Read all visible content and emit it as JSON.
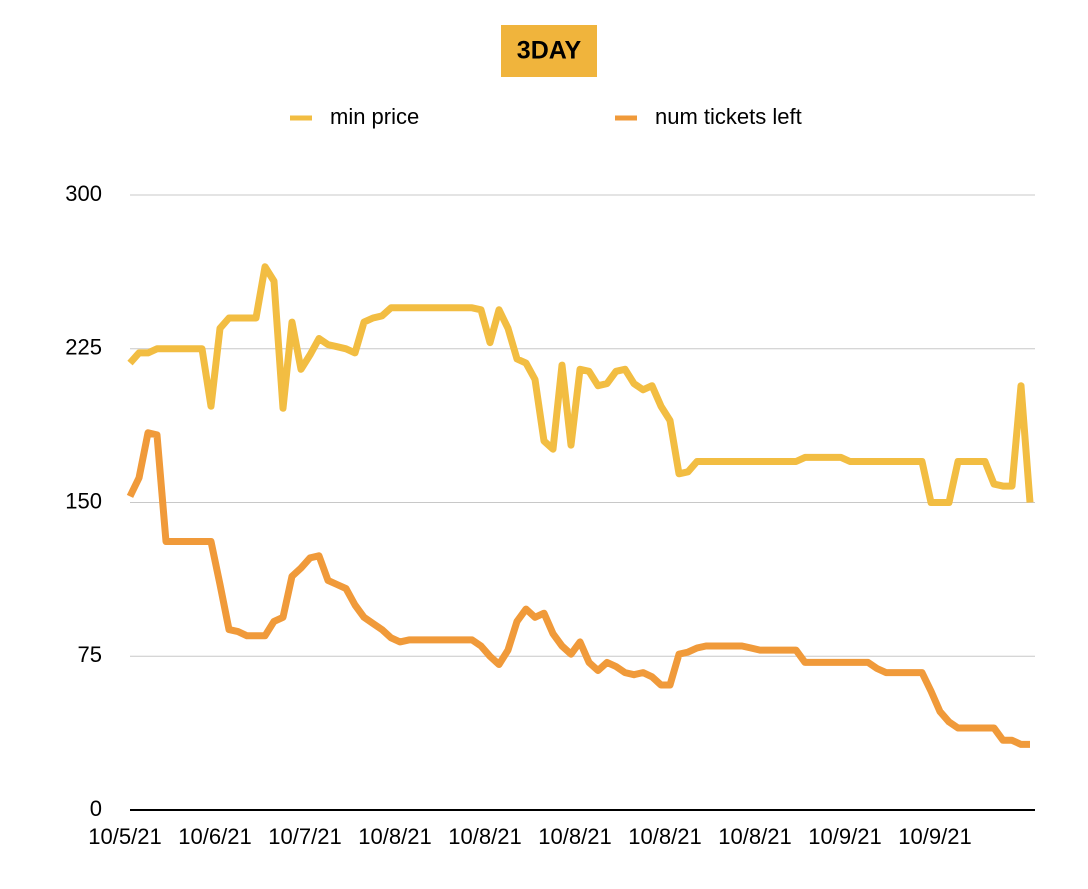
{
  "chart_data": {
    "type": "line",
    "title": "3DAY",
    "categories": [
      "10/5/21",
      null,
      null,
      null,
      null,
      null,
      null,
      null,
      null,
      null,
      "10/6/21",
      null,
      null,
      null,
      null,
      null,
      null,
      null,
      null,
      null,
      "10/7/21",
      null,
      null,
      null,
      null,
      null,
      null,
      null,
      null,
      null,
      "10/8/21",
      null,
      null,
      null,
      null,
      null,
      null,
      null,
      null,
      null,
      "10/8/21",
      null,
      null,
      null,
      null,
      null,
      null,
      null,
      null,
      null,
      "10/8/21",
      null,
      null,
      null,
      null,
      null,
      null,
      null,
      null,
      null,
      "10/8/21",
      null,
      null,
      null,
      null,
      null,
      null,
      null,
      null,
      null,
      "10/8/21",
      null,
      null,
      null,
      null,
      null,
      null,
      null,
      null,
      null,
      "10/9/21",
      null,
      null,
      null,
      null,
      null,
      null,
      null,
      null,
      null,
      "10/9/21",
      null,
      null,
      null,
      null,
      null,
      null,
      null,
      null,
      null,
      null
    ],
    "series": [
      {
        "name": "min price",
        "color": "#f2bd42",
        "values": [
          218,
          223,
          223,
          225,
          225,
          225,
          225,
          225,
          225,
          197,
          235,
          240,
          240,
          240,
          240,
          265,
          258,
          196,
          238,
          215,
          222,
          230,
          227,
          226,
          225,
          223,
          238,
          240,
          241,
          245,
          245,
          245,
          245,
          245,
          245,
          245,
          245,
          245,
          245,
          244,
          228,
          244,
          235,
          220,
          218,
          210,
          180,
          176,
          217,
          178,
          215,
          214,
          207,
          208,
          214,
          215,
          208,
          205,
          207,
          197,
          190,
          164,
          165,
          170,
          170,
          170,
          170,
          170,
          170,
          170,
          170,
          170,
          170,
          170,
          170,
          172,
          172,
          172,
          172,
          172,
          170,
          170,
          170,
          170,
          170,
          170,
          170,
          170,
          170,
          150,
          150,
          150,
          170,
          170,
          170,
          170,
          159,
          158,
          158,
          207,
          150
        ]
      },
      {
        "name": "num tickets left",
        "color": "#f09a3a",
        "values": [
          153,
          162,
          184,
          183,
          131,
          131,
          131,
          131,
          131,
          131,
          110,
          88,
          87,
          85,
          85,
          85,
          92,
          94,
          114,
          118,
          123,
          124,
          112,
          110,
          108,
          100,
          94,
          91,
          88,
          84,
          82,
          83,
          83,
          83,
          83,
          83,
          83,
          83,
          83,
          80,
          75,
          71,
          78,
          92,
          98,
          94,
          96,
          86,
          80,
          76,
          82,
          72,
          68,
          72,
          70,
          67,
          66,
          67,
          65,
          61,
          61,
          76,
          77,
          79,
          80,
          80,
          80,
          80,
          80,
          79,
          78,
          78,
          78,
          78,
          78,
          72,
          72,
          72,
          72,
          72,
          72,
          72,
          72,
          69,
          67,
          67,
          67,
          67,
          67,
          58,
          48,
          43,
          40,
          40,
          40,
          40,
          40,
          34,
          34,
          32,
          32
        ]
      }
    ],
    "ylim": [
      0,
      300
    ],
    "yticks": [
      0,
      75,
      150,
      225,
      300
    ],
    "grid": true,
    "legend": "top"
  }
}
